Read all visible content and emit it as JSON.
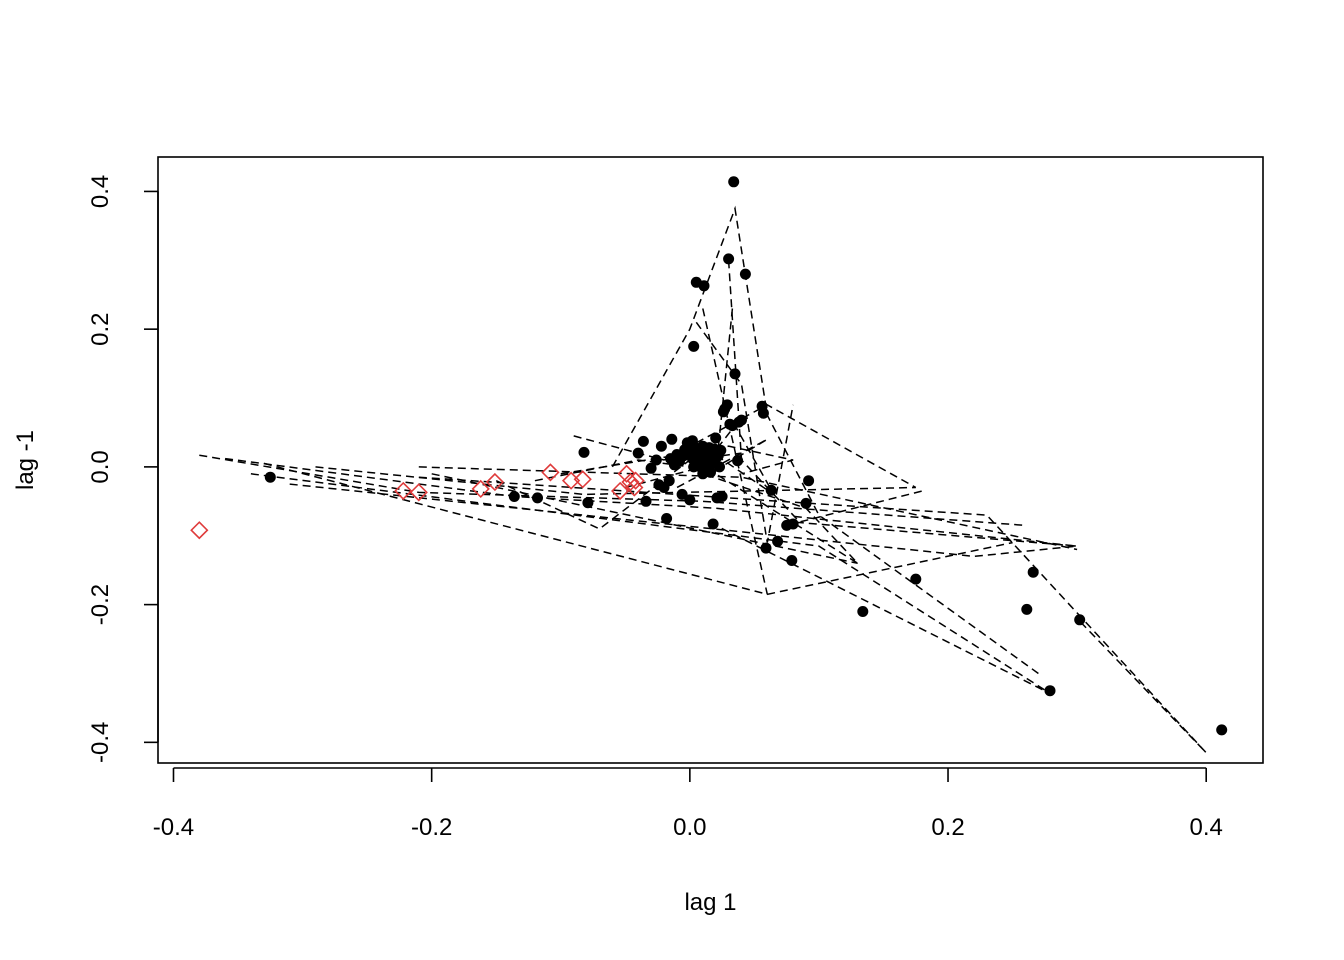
{
  "chart_data": {
    "type": "scatter",
    "title": "",
    "xlabel": "lag 1",
    "ylabel": "lag -1",
    "xlim": [
      -0.412,
      0.444
    ],
    "ylim": [
      -0.43,
      0.45
    ],
    "x_ticks": [
      -0.4,
      -0.2,
      0.0,
      0.2,
      0.4
    ],
    "x_tick_labels": [
      "-0.4",
      "-0.2",
      "0.0",
      "0.2",
      "0.4"
    ],
    "y_ticks": [
      -0.4,
      -0.2,
      0.0,
      0.2,
      0.4
    ],
    "y_tick_labels": [
      "-0.4",
      "-0.2",
      "0.0",
      "0.2",
      "0.4"
    ],
    "grid": false,
    "legend": "none",
    "colors": {
      "points": "#000000",
      "highlight": "#df3b3b",
      "lines": "#000000"
    },
    "series": [
      {
        "marker": "filled-circle",
        "color": "#000000",
        "points": [
          [
            -0.325,
            -0.015
          ],
          [
            -0.136,
            -0.043
          ],
          [
            -0.118,
            -0.045
          ],
          [
            -0.082,
            0.021
          ],
          [
            -0.079,
            -0.052
          ],
          [
            -0.04,
            0.02
          ],
          [
            -0.036,
            0.037
          ],
          [
            -0.034,
            -0.05
          ],
          [
            -0.03,
            -0.002
          ],
          [
            -0.026,
            0.01
          ],
          [
            -0.022,
            0.03
          ],
          [
            -0.02,
            -0.03
          ],
          [
            -0.018,
            -0.075
          ],
          [
            -0.016,
            -0.02
          ],
          [
            -0.014,
            0.04
          ],
          [
            -0.012,
            0.003
          ],
          [
            -0.01,
            0.018
          ],
          [
            -0.008,
            0.008
          ],
          [
            -0.006,
            -0.04
          ],
          [
            -0.004,
            0.025
          ],
          [
            -0.002,
            0.035
          ],
          [
            0.0,
            -0.048
          ],
          [
            0.002,
            0.012
          ],
          [
            0.002,
            0.038
          ],
          [
            0.003,
            0.0
          ],
          [
            0.003,
            0.175
          ],
          [
            0.005,
            0.268
          ],
          [
            0.006,
            0.02
          ],
          [
            0.008,
            0.005
          ],
          [
            0.009,
            0.014
          ],
          [
            0.01,
            0.03
          ],
          [
            0.011,
            0.263
          ],
          [
            0.012,
            0.002
          ],
          [
            0.013,
            0.023
          ],
          [
            0.014,
            0.01
          ],
          [
            0.015,
            0.015
          ],
          [
            0.016,
            -0.008
          ],
          [
            0.017,
            0.008
          ],
          [
            0.018,
            -0.083
          ],
          [
            0.019,
            0.026
          ],
          [
            0.02,
            0.042
          ],
          [
            0.021,
            -0.045
          ],
          [
            0.022,
            0.016
          ],
          [
            0.023,
            0.0
          ],
          [
            0.024,
            0.024
          ],
          [
            0.025,
            -0.043
          ],
          [
            0.026,
            0.08
          ],
          [
            0.027,
            0.084
          ],
          [
            0.029,
            0.09
          ],
          [
            0.03,
            0.302
          ],
          [
            0.031,
            0.062
          ],
          [
            0.033,
            0.06
          ],
          [
            0.034,
            0.414
          ],
          [
            0.035,
            0.135
          ],
          [
            0.037,
            0.009
          ],
          [
            0.038,
            0.065
          ],
          [
            0.04,
            0.068
          ],
          [
            0.043,
            0.28
          ],
          [
            0.056,
            0.088
          ],
          [
            0.057,
            0.078
          ],
          [
            0.059,
            -0.118
          ],
          [
            0.063,
            -0.034
          ],
          [
            0.068,
            -0.108
          ],
          [
            0.075,
            -0.085
          ],
          [
            0.079,
            -0.136
          ],
          [
            0.08,
            -0.083
          ],
          [
            0.09,
            -0.053
          ],
          [
            0.092,
            -0.02
          ],
          [
            0.134,
            -0.21
          ],
          [
            0.175,
            -0.163
          ],
          [
            0.261,
            -0.207
          ],
          [
            0.266,
            -0.153
          ],
          [
            0.279,
            -0.325
          ],
          [
            0.302,
            -0.222
          ],
          [
            0.412,
            -0.382
          ],
          [
            0.005,
            0.01
          ],
          [
            0.007,
            0.001
          ],
          [
            0.012,
            0.018
          ],
          [
            0.016,
            0.004
          ],
          [
            0.02,
            0.012
          ],
          [
            -0.024,
            -0.026
          ],
          [
            -0.015,
            0.012
          ],
          [
            0.001,
            0.02
          ],
          [
            0.01,
            -0.01
          ],
          [
            0.015,
            0.028
          ],
          [
            0.008,
            0.022
          ],
          [
            -0.005,
            0.016
          ],
          [
            0.013,
            0.006
          ],
          [
            0.018,
            0.02
          ],
          [
            0.004,
            0.028
          ]
        ]
      },
      {
        "marker": "open-diamond",
        "color": "#df3b3b",
        "points": [
          [
            -0.38,
            -0.092
          ],
          [
            -0.222,
            -0.035
          ],
          [
            -0.21,
            -0.037
          ],
          [
            -0.162,
            -0.032
          ],
          [
            -0.151,
            -0.022
          ],
          [
            -0.108,
            -0.008
          ],
          [
            -0.092,
            -0.02
          ],
          [
            -0.083,
            -0.018
          ],
          [
            -0.054,
            -0.035
          ],
          [
            -0.049,
            -0.01
          ],
          [
            -0.046,
            -0.022
          ],
          [
            -0.043,
            -0.03
          ],
          [
            -0.042,
            -0.02
          ]
        ]
      }
    ],
    "dashed_lines": [
      [
        [
          -0.38,
          0.017
        ],
        [
          -0.21,
          -0.037
        ],
        [
          0.01,
          -0.05
        ],
        [
          0.26,
          -0.085
        ]
      ],
      [
        [
          -0.36,
          0.012
        ],
        [
          -0.136,
          -0.043
        ],
        [
          0.02,
          -0.06
        ],
        [
          0.3,
          -0.115
        ]
      ],
      [
        [
          -0.33,
          0.005
        ],
        [
          0.06,
          -0.185
        ],
        [
          0.25,
          -0.11
        ]
      ],
      [
        [
          -0.29,
          0.0
        ],
        [
          -0.082,
          -0.04
        ],
        [
          0.175,
          -0.03
        ]
      ],
      [
        [
          -0.2,
          -0.01
        ],
        [
          0.13,
          -0.14
        ]
      ],
      [
        [
          -0.21,
          -0.015
        ],
        [
          0.23,
          -0.07
        ],
        [
          0.4,
          -0.415
        ],
        [
          0.3,
          -0.22
        ]
      ],
      [
        [
          -0.34,
          -0.01
        ],
        [
          0.1,
          -0.115
        ],
        [
          0.28,
          -0.33
        ],
        [
          0.02,
          -0.085
        ]
      ],
      [
        [
          -0.31,
          -0.025
        ],
        [
          0.22,
          -0.13
        ],
        [
          0.3,
          -0.115
        ],
        [
          0.08,
          -0.08
        ]
      ],
      [
        [
          -0.21,
          0.0
        ],
        [
          0.04,
          -0.015
        ],
        [
          0.3,
          -0.12
        ]
      ],
      [
        [
          -0.15,
          -0.02
        ],
        [
          -0.07,
          -0.09
        ],
        [
          0.0,
          0.01
        ],
        [
          0.04,
          0.02
        ]
      ],
      [
        [
          -0.09,
          0.045
        ],
        [
          -0.02,
          0.01
        ],
        [
          0.04,
          0.07
        ],
        [
          0.06,
          0.09
        ],
        [
          0.175,
          -0.03
        ]
      ],
      [
        [
          -0.06,
          0.0
        ],
        [
          0.0,
          0.2
        ],
        [
          0.035,
          0.375
        ],
        [
          0.06,
          0.075
        ],
        [
          0.1,
          -0.07
        ],
        [
          0.27,
          -0.3
        ]
      ],
      [
        [
          0.005,
          0.21
        ],
        [
          0.04,
          0.12
        ],
        [
          0.06,
          -0.11
        ],
        [
          0.08,
          0.09
        ]
      ],
      [
        [
          0.01,
          0.23
        ],
        [
          0.06,
          -0.185
        ]
      ],
      [
        [
          0.03,
          0.3
        ],
        [
          0.04,
          0.01
        ],
        [
          0.085,
          -0.08
        ],
        [
          0.18,
          -0.035
        ]
      ],
      [
        [
          0.033,
          0.23
        ],
        [
          0.02,
          -0.01
        ],
        [
          0.13,
          -0.14
        ],
        [
          0.09,
          -0.06
        ],
        [
          0.01,
          -0.01
        ]
      ],
      [
        [
          -0.1,
          -0.01
        ],
        [
          0.0,
          0.02
        ],
        [
          0.03,
          0.03
        ],
        [
          0.08,
          0.01
        ],
        [
          0.04,
          -0.01
        ]
      ],
      [
        [
          -0.05,
          -0.03
        ],
        [
          0.01,
          0.0
        ],
        [
          0.035,
          0.06
        ],
        [
          0.065,
          -0.04
        ],
        [
          0.01,
          0.03
        ]
      ],
      [
        [
          -0.12,
          -0.02
        ],
        [
          -0.04,
          0.01
        ],
        [
          0.02,
          -0.005
        ],
        [
          0.06,
          0.04
        ],
        [
          -0.01,
          -0.03
        ]
      ]
    ]
  }
}
